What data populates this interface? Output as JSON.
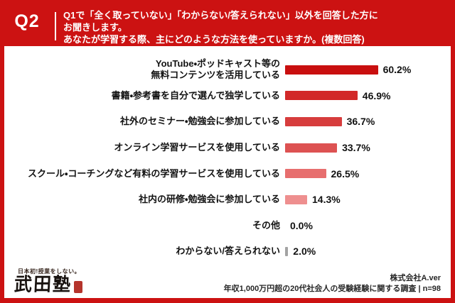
{
  "header": {
    "question_number": "Q2",
    "lines": [
      "Q1で「全く取っていない」「わからない/答えられない」以外を回答した方に",
      "お聞きします。",
      "あなたが学習する際、主にどのような方法を使っていますか。(複数回答)"
    ]
  },
  "chart_data": {
    "type": "bar",
    "orientation": "horizontal",
    "unit": "%",
    "xlim": [
      0,
      100
    ],
    "grid": false,
    "legend": false,
    "categories": [
      "YouTube・ポッドキャスト等の\n無料コンテンツを活用している",
      "書籍・参考書を自分で選んで独学している",
      "社外のセミナー・勉強会に参加している",
      "オンライン学習サービスを使用している",
      "スクール・コーチングなど有料の学習サービスを使用している",
      "社内の研修・勉強会に参加している",
      "その他",
      "わからない/答えられない"
    ],
    "values": [
      60.2,
      46.9,
      36.7,
      33.7,
      26.5,
      14.3,
      0.0,
      2.0
    ],
    "value_labels": [
      "60.2%",
      "46.9%",
      "36.7%",
      "33.7%",
      "26.5%",
      "14.3%",
      "0.0%",
      "2.0%"
    ],
    "bar_colors": [
      "#c90f0f",
      "#d22929",
      "#d73d3d",
      "#dd5252",
      "#e76e6e",
      "#ee8f8f",
      "#ffffff",
      "#a3a3a3"
    ]
  },
  "footer": {
    "logo_tagline": "日本初!授業をしない。",
    "logo_name": "武田塾",
    "company": "株式会社A.ver",
    "survey_caption": "年収1,000万円超の20代社会人の受験経験に関する調査 | n=98"
  },
  "colors": {
    "background_red": "#cc1212",
    "panel_white": "#ffffff",
    "header_text": "#ffffff",
    "label_text": "#121212",
    "no_answer_bar_gray": "#a3a3a3",
    "seal_red": "#b5342c"
  }
}
